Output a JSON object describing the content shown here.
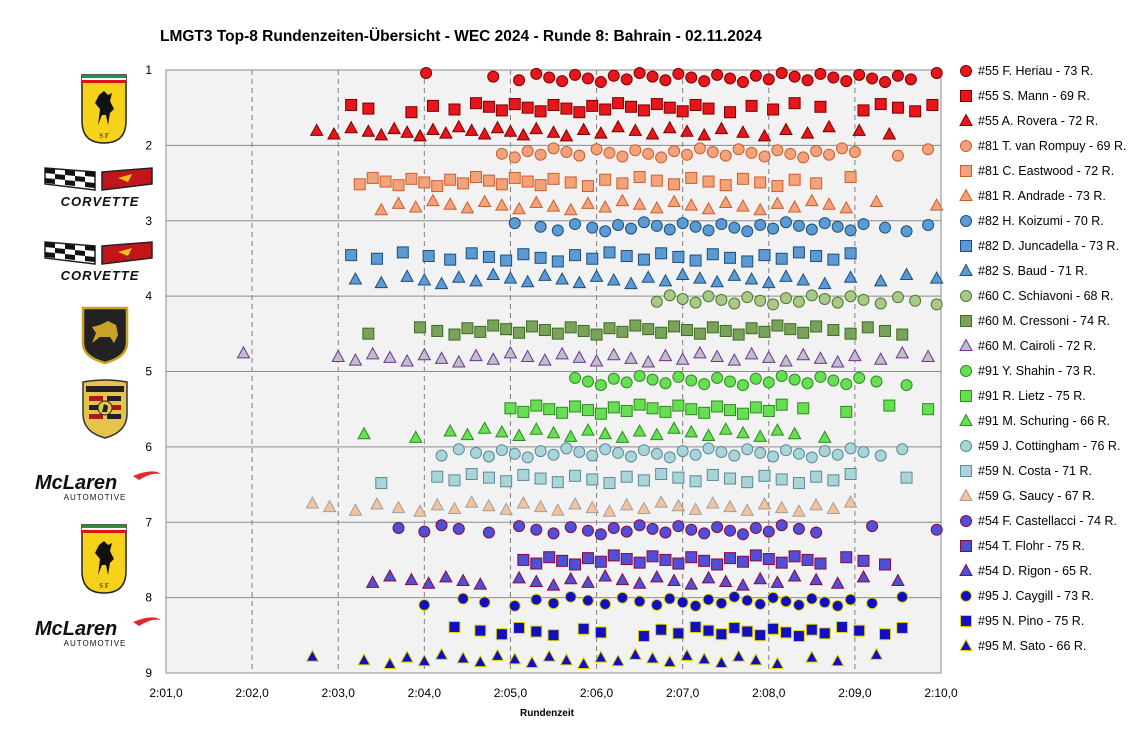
{
  "chart_data": {
    "type": "scatter",
    "title": "LMGT3 Top-8 Rundenzeiten-Übersicht - WEC 2024 - Runde 8: Bahrain - 02.11.2024",
    "xlabel": "Rundenzeit",
    "ylabel": "",
    "xlim": [
      121.0,
      130.0
    ],
    "ylim": [
      1,
      9
    ],
    "y_reversed": true,
    "x_ticks": [
      "2:01,0",
      "2:02,0",
      "2:03,0",
      "2:04,0",
      "2:05,0",
      "2:06,0",
      "2:07,0",
      "2:08,0",
      "2:09,0",
      "2:10,0"
    ],
    "y_ticks": [
      "1",
      "2",
      "3",
      "4",
      "5",
      "6",
      "7",
      "8",
      "9"
    ],
    "grid": {
      "vertical": "dashed",
      "horizontal": "solid"
    },
    "legend_position": "right",
    "series": [
      {
        "name": "#55 F. Heriau - 73 R.",
        "marker": "circle",
        "color": "#e8161b",
        "edge": "#7a0000",
        "y": 1.1,
        "x": [
          124.02,
          124.8,
          125.1,
          125.3,
          125.45,
          125.6,
          125.75,
          125.9,
          126.05,
          126.2,
          126.35,
          126.5,
          126.65,
          126.8,
          126.95,
          127.1,
          127.25,
          127.4,
          127.55,
          127.7,
          127.85,
          128.0,
          128.15,
          128.3,
          128.45,
          128.6,
          128.75,
          128.9,
          129.05,
          129.2,
          129.35,
          129.5,
          129.65,
          129.95
        ]
      },
      {
        "name": "#55 S. Mann - 69 R.",
        "marker": "square",
        "color": "#e8161b",
        "edge": "#7a0000",
        "y": 1.5,
        "x": [
          123.15,
          123.35,
          123.85,
          124.1,
          124.35,
          124.6,
          124.75,
          124.9,
          125.05,
          125.2,
          125.35,
          125.5,
          125.65,
          125.8,
          125.95,
          126.1,
          126.25,
          126.4,
          126.55,
          126.7,
          126.85,
          127.0,
          127.15,
          127.3,
          127.55,
          127.8,
          128.05,
          128.3,
          128.6,
          129.1,
          129.3,
          129.5,
          129.7,
          129.9
        ]
      },
      {
        "name": "#55 A. Rovera - 72 R.",
        "marker": "triangle",
        "color": "#e8161b",
        "edge": "#7a0000",
        "y": 1.82,
        "x": [
          122.75,
          122.95,
          123.15,
          123.35,
          123.5,
          123.65,
          123.8,
          123.95,
          124.1,
          124.25,
          124.4,
          124.55,
          124.7,
          124.85,
          125.0,
          125.15,
          125.3,
          125.5,
          125.65,
          125.85,
          126.05,
          126.25,
          126.45,
          126.65,
          126.85,
          127.05,
          127.25,
          127.45,
          127.7,
          127.95,
          128.2,
          128.45,
          128.7,
          129.05,
          129.4
        ]
      },
      {
        "name": "#81 T. van Rompuy - 69 R.",
        "marker": "circle",
        "color": "#f5a27a",
        "edge": "#c8602f",
        "y": 2.1,
        "x": [
          124.9,
          125.05,
          125.2,
          125.35,
          125.5,
          125.65,
          125.8,
          126.0,
          126.15,
          126.3,
          126.45,
          126.6,
          126.75,
          126.9,
          127.05,
          127.2,
          127.35,
          127.5,
          127.65,
          127.8,
          127.95,
          128.1,
          128.25,
          128.4,
          128.55,
          128.7,
          128.85,
          129.0,
          129.5,
          129.85
        ]
      },
      {
        "name": "#81 C. Eastwood - 72 R.",
        "marker": "square",
        "color": "#f5a27a",
        "edge": "#c8602f",
        "y": 2.48,
        "x": [
          123.25,
          123.4,
          123.55,
          123.7,
          123.85,
          124.0,
          124.15,
          124.3,
          124.45,
          124.6,
          124.75,
          124.9,
          125.05,
          125.2,
          125.35,
          125.5,
          125.7,
          125.9,
          126.1,
          126.3,
          126.5,
          126.7,
          126.9,
          127.1,
          127.3,
          127.5,
          127.7,
          127.9,
          128.1,
          128.3,
          128.55,
          128.95
        ]
      },
      {
        "name": "#81 R. Andrade - 73 R.",
        "marker": "triangle",
        "color": "#f5a27a",
        "edge": "#c8602f",
        "y": 2.8,
        "x": [
          123.5,
          123.7,
          123.9,
          124.1,
          124.3,
          124.5,
          124.7,
          124.9,
          125.1,
          125.3,
          125.5,
          125.7,
          125.9,
          126.1,
          126.3,
          126.5,
          126.7,
          126.9,
          127.1,
          127.3,
          127.5,
          127.7,
          127.9,
          128.1,
          128.3,
          128.5,
          128.7,
          128.9,
          129.25,
          129.95
        ]
      },
      {
        "name": "#82 H. Koizumi - 70 R.",
        "marker": "circle",
        "color": "#5b9bd5",
        "edge": "#1f4e79",
        "y": 3.08,
        "x": [
          125.05,
          125.35,
          125.55,
          125.75,
          125.95,
          126.1,
          126.25,
          126.4,
          126.55,
          126.7,
          126.85,
          127.0,
          127.15,
          127.3,
          127.45,
          127.6,
          127.75,
          127.9,
          128.05,
          128.2,
          128.35,
          128.5,
          128.65,
          128.8,
          128.95,
          129.1,
          129.35,
          129.6,
          129.85
        ]
      },
      {
        "name": "#82 D. Juncadella - 73 R.",
        "marker": "square",
        "color": "#5b9bd5",
        "edge": "#1f4e79",
        "y": 3.48,
        "x": [
          123.15,
          123.45,
          123.75,
          124.05,
          124.3,
          124.55,
          124.75,
          124.95,
          125.15,
          125.35,
          125.55,
          125.75,
          125.95,
          126.15,
          126.35,
          126.55,
          126.75,
          126.95,
          127.15,
          127.35,
          127.55,
          127.75,
          127.95,
          128.15,
          128.35,
          128.55,
          128.75,
          128.95
        ]
      },
      {
        "name": "#82 S. Baud - 71 R.",
        "marker": "triangle",
        "color": "#5b9bd5",
        "edge": "#1f4e79",
        "y": 3.78,
        "x": [
          123.2,
          123.5,
          123.8,
          124.0,
          124.2,
          124.4,
          124.6,
          124.8,
          125.0,
          125.2,
          125.4,
          125.6,
          125.8,
          126.0,
          126.2,
          126.4,
          126.6,
          126.8,
          127.0,
          127.2,
          127.4,
          127.6,
          127.8,
          128.0,
          128.2,
          128.4,
          128.65,
          128.95,
          129.3,
          129.6,
          129.95
        ]
      },
      {
        "name": "#60 C. Schiavoni - 68 R.",
        "marker": "circle",
        "color": "#a9c98a",
        "edge": "#4e7a2a",
        "y": 4.05,
        "x": [
          126.7,
          126.85,
          127.0,
          127.15,
          127.3,
          127.45,
          127.6,
          127.75,
          127.9,
          128.05,
          128.2,
          128.35,
          128.5,
          128.65,
          128.8,
          128.95,
          129.1,
          129.3,
          129.5,
          129.7,
          129.95
        ]
      },
      {
        "name": "#60 M. Cressoni - 74 R.",
        "marker": "square",
        "color": "#7aa35a",
        "edge": "#3f6a24",
        "y": 4.45,
        "x": [
          123.35,
          123.95,
          124.15,
          124.35,
          124.5,
          124.65,
          124.8,
          124.95,
          125.1,
          125.25,
          125.4,
          125.55,
          125.7,
          125.85,
          126.0,
          126.15,
          126.3,
          126.45,
          126.6,
          126.75,
          126.9,
          127.05,
          127.2,
          127.35,
          127.5,
          127.65,
          127.8,
          127.95,
          128.1,
          128.25,
          128.4,
          128.55,
          128.75,
          128.95,
          129.15,
          129.35,
          129.55
        ]
      },
      {
        "name": "#60 M. Cairoli - 72 R.",
        "marker": "triangle",
        "color": "#c0c0c0",
        "edge": "#7030a0",
        "y": 4.82,
        "x": [
          121.9,
          123.0,
          123.2,
          123.4,
          123.6,
          123.8,
          124.0,
          124.2,
          124.4,
          124.6,
          124.8,
          125.0,
          125.2,
          125.4,
          125.6,
          125.8,
          126.0,
          126.2,
          126.4,
          126.6,
          126.8,
          127.0,
          127.2,
          127.4,
          127.6,
          127.8,
          128.0,
          128.2,
          128.4,
          128.6,
          128.8,
          129.0,
          129.3,
          129.55,
          129.85
        ]
      },
      {
        "name": "#91 Y. Shahin - 73 R.",
        "marker": "circle",
        "color": "#66e052",
        "edge": "#2d8a1e",
        "y": 5.12,
        "x": [
          125.75,
          125.9,
          126.05,
          126.2,
          126.35,
          126.5,
          126.65,
          126.8,
          126.95,
          127.1,
          127.25,
          127.4,
          127.55,
          127.7,
          127.85,
          128.0,
          128.15,
          128.3,
          128.45,
          128.6,
          128.75,
          128.9,
          129.05,
          129.25,
          129.6
        ]
      },
      {
        "name": "#91 R. Lietz - 75 R.",
        "marker": "square",
        "color": "#66e052",
        "edge": "#2d8a1e",
        "y": 5.5,
        "x": [
          125.0,
          125.15,
          125.3,
          125.45,
          125.6,
          125.75,
          125.9,
          126.05,
          126.2,
          126.35,
          126.5,
          126.65,
          126.8,
          126.95,
          127.1,
          127.25,
          127.4,
          127.55,
          127.7,
          127.85,
          128.0,
          128.15,
          128.4,
          128.9,
          129.4,
          129.85
        ]
      },
      {
        "name": "#91 M. Schuring - 66 R.",
        "marker": "triangle",
        "color": "#66e052",
        "edge": "#2d8a1e",
        "y": 5.82,
        "x": [
          123.3,
          123.9,
          124.3,
          124.5,
          124.7,
          124.9,
          125.1,
          125.3,
          125.5,
          125.7,
          125.9,
          126.1,
          126.3,
          126.5,
          126.7,
          126.9,
          127.1,
          127.3,
          127.5,
          127.7,
          127.9,
          128.1,
          128.3,
          128.65
        ]
      },
      {
        "name": "#59 J. Cottingham - 76 R.",
        "marker": "circle",
        "color": "#a9d4d8",
        "edge": "#5b8a9a",
        "y": 6.08,
        "x": [
          124.2,
          124.4,
          124.6,
          124.75,
          124.9,
          125.05,
          125.2,
          125.35,
          125.5,
          125.65,
          125.8,
          125.95,
          126.1,
          126.25,
          126.4,
          126.55,
          126.7,
          126.85,
          127.0,
          127.15,
          127.3,
          127.45,
          127.6,
          127.75,
          127.9,
          128.05,
          128.2,
          128.35,
          128.5,
          128.65,
          128.8,
          128.95,
          129.1,
          129.3,
          129.55
        ]
      },
      {
        "name": "#59 N. Costa - 71 R.",
        "marker": "square",
        "color": "#a9d4d8",
        "edge": "#5b8a9a",
        "y": 6.42,
        "x": [
          123.5,
          124.15,
          124.35,
          124.55,
          124.75,
          124.95,
          125.15,
          125.35,
          125.55,
          125.75,
          125.95,
          126.15,
          126.35,
          126.55,
          126.75,
          126.95,
          127.15,
          127.35,
          127.55,
          127.75,
          127.95,
          128.15,
          128.35,
          128.55,
          128.75,
          128.95,
          129.6
        ]
      },
      {
        "name": "#59 G. Saucy - 67 R.",
        "marker": "triangle",
        "color": "#f5c29a",
        "edge": "#a0a0a0",
        "y": 6.8,
        "x": [
          122.7,
          122.9,
          123.2,
          123.45,
          123.7,
          123.95,
          124.15,
          124.35,
          124.55,
          124.75,
          124.95,
          125.15,
          125.35,
          125.55,
          125.75,
          125.95,
          126.15,
          126.35,
          126.55,
          126.75,
          126.95,
          127.15,
          127.35,
          127.55,
          127.75,
          127.95,
          128.15,
          128.35,
          128.55,
          128.75,
          128.95
        ]
      },
      {
        "name": "#54 F. Castellacci - 74 R.",
        "marker": "circle",
        "color": "#4f4fd8",
        "edge": "#8b0a3a",
        "y": 7.1,
        "x": [
          123.7,
          124.0,
          124.2,
          124.4,
          124.75,
          125.1,
          125.3,
          125.5,
          125.7,
          125.9,
          126.05,
          126.2,
          126.35,
          126.5,
          126.65,
          126.8,
          126.95,
          127.1,
          127.25,
          127.4,
          127.55,
          127.7,
          127.85,
          128.0,
          128.15,
          128.35,
          128.55,
          129.2,
          129.95
        ]
      },
      {
        "name": "#54 T. Flohr - 75 R.",
        "marker": "square",
        "color": "#4f4fd8",
        "edge": "#8b0a3a",
        "y": 7.5,
        "x": [
          125.15,
          125.3,
          125.45,
          125.6,
          125.75,
          125.9,
          126.05,
          126.2,
          126.35,
          126.5,
          126.65,
          126.8,
          126.95,
          127.1,
          127.25,
          127.4,
          127.55,
          127.7,
          127.85,
          128.0,
          128.15,
          128.3,
          128.45,
          128.6,
          128.9,
          129.1,
          129.35
        ]
      },
      {
        "name": "#54 D. Rigon - 65 R.",
        "marker": "triangle",
        "color": "#4f4fd8",
        "edge": "#8b0a3a",
        "y": 7.78,
        "x": [
          123.4,
          123.6,
          123.85,
          124.05,
          124.25,
          124.45,
          124.65,
          125.1,
          125.3,
          125.5,
          125.7,
          125.9,
          126.1,
          126.3,
          126.5,
          126.7,
          126.9,
          127.1,
          127.3,
          127.5,
          127.7,
          127.9,
          128.1,
          128.3,
          128.55,
          128.8,
          129.1,
          129.5
        ]
      },
      {
        "name": "#95 J. Caygill - 73 R.",
        "marker": "circle",
        "color": "#1010c0",
        "edge": "#e6d800",
        "y": 8.05,
        "x": [
          124.0,
          124.45,
          124.7,
          125.05,
          125.3,
          125.5,
          125.7,
          125.9,
          126.1,
          126.3,
          126.5,
          126.7,
          126.85,
          127.0,
          127.15,
          127.3,
          127.45,
          127.6,
          127.75,
          127.9,
          128.05,
          128.2,
          128.35,
          128.5,
          128.65,
          128.8,
          128.95,
          129.2,
          129.55
        ]
      },
      {
        "name": "#95 N. Pino - 75 R.",
        "marker": "square",
        "color": "#1010c0",
        "edge": "#e6d800",
        "y": 8.45,
        "x": [
          124.35,
          124.65,
          124.9,
          125.1,
          125.3,
          125.5,
          125.85,
          126.05,
          126.55,
          126.75,
          126.95,
          127.15,
          127.3,
          127.45,
          127.6,
          127.75,
          127.9,
          128.05,
          128.2,
          128.35,
          128.5,
          128.65,
          128.85,
          129.05,
          129.35,
          129.55
        ]
      },
      {
        "name": "#95 M. Sato - 66 R.",
        "marker": "triangle",
        "color": "#1010c0",
        "edge": "#e6d800",
        "y": 8.82,
        "x": [
          122.7,
          123.3,
          123.6,
          123.8,
          124.0,
          124.2,
          124.45,
          124.65,
          124.85,
          125.05,
          125.25,
          125.45,
          125.65,
          125.85,
          126.05,
          126.25,
          126.45,
          126.65,
          126.85,
          127.05,
          127.25,
          127.45,
          127.65,
          127.85,
          128.1,
          128.5,
          128.8,
          129.25
        ]
      }
    ]
  }
}
